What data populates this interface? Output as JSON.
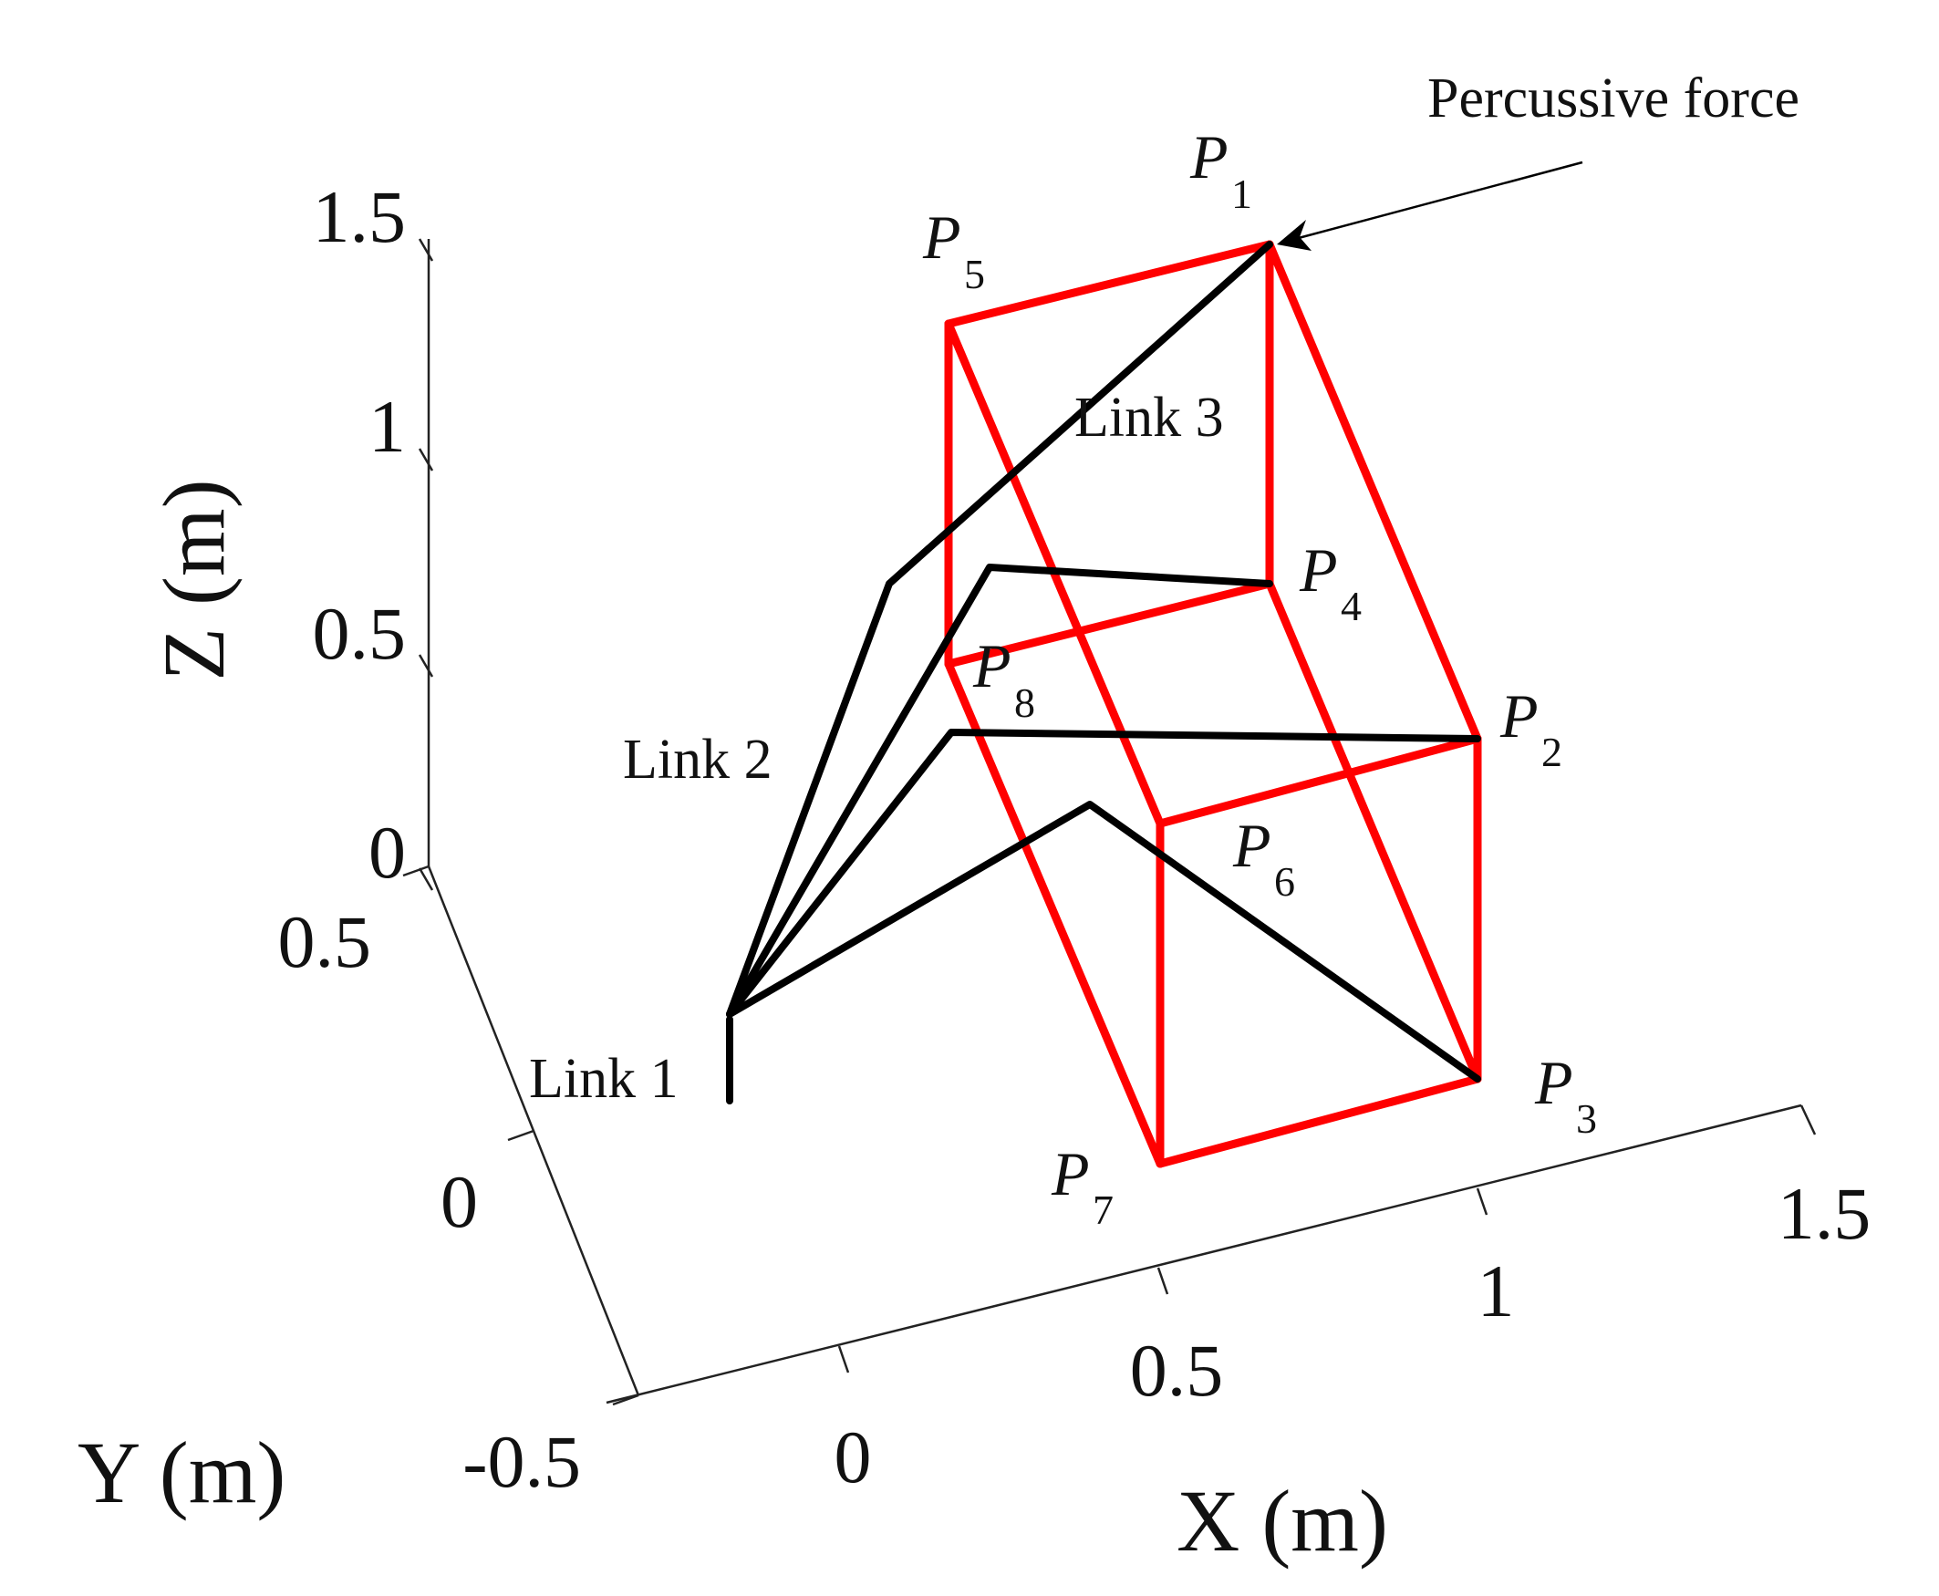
{
  "axes": {
    "x": {
      "label": "X (m)",
      "ticks": [
        "0",
        "0.5",
        "1",
        "1.5"
      ]
    },
    "y": {
      "label": "Y (m)",
      "ticks": [
        "-0.5",
        "0",
        "0.5"
      ]
    },
    "z": {
      "label": "Z (m)",
      "ticks": [
        "0",
        "0.5",
        "1",
        "1.5"
      ]
    }
  },
  "labels": {
    "force": "Percussive force",
    "link1": "Link 1",
    "link2": "Link 2",
    "link3": "Link 3"
  },
  "points": [
    {
      "letter": "P",
      "sub": "1"
    },
    {
      "letter": "P",
      "sub": "2"
    },
    {
      "letter": "P",
      "sub": "3"
    },
    {
      "letter": "P",
      "sub": "4"
    },
    {
      "letter": "P",
      "sub": "5"
    },
    {
      "letter": "P",
      "sub": "6"
    },
    {
      "letter": "P",
      "sub": "7"
    },
    {
      "letter": "P",
      "sub": "8"
    }
  ],
  "colors": {
    "box": "#ff0000",
    "links": "#000000",
    "axes": "#222222"
  }
}
